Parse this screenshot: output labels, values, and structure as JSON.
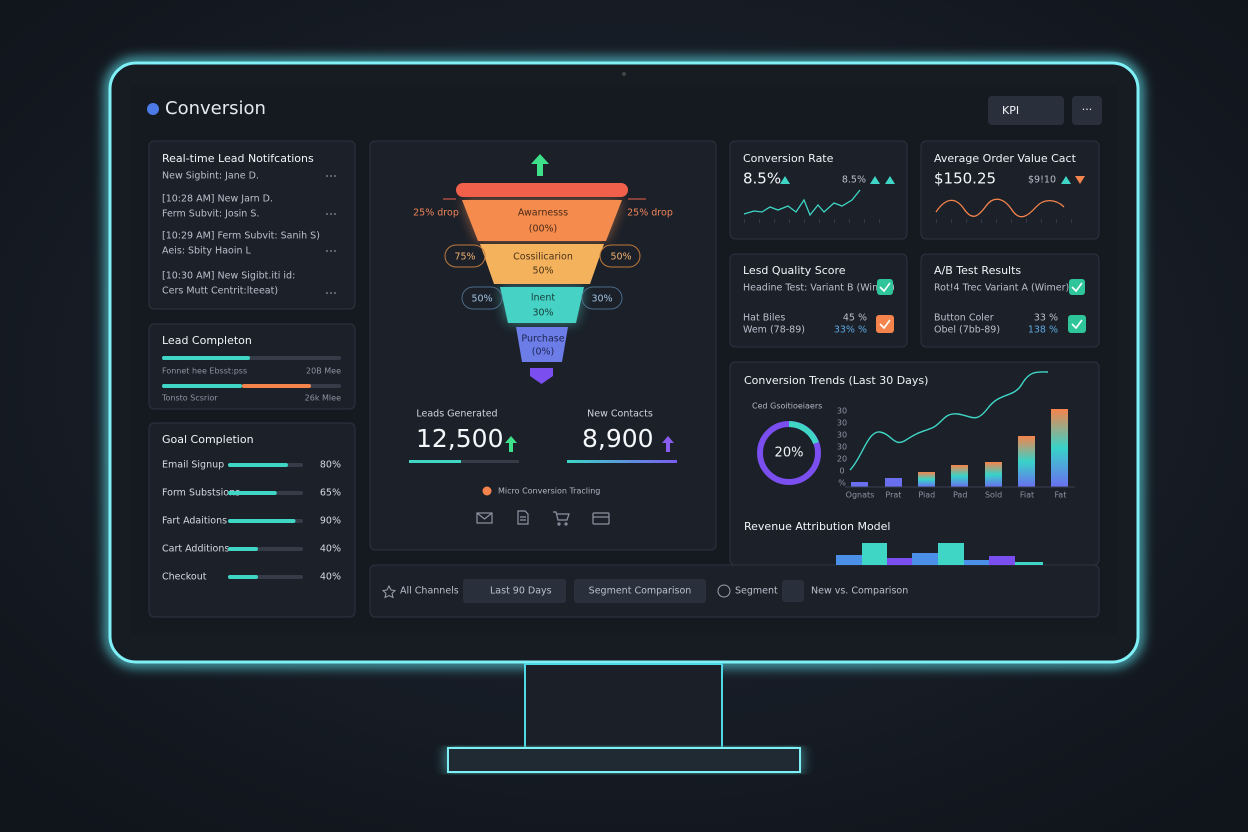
{
  "header": {
    "title": "Conversion",
    "kpi_button": "KPI",
    "more_button": "···"
  },
  "notifications": {
    "title": "Real-time Lead Notifcations",
    "items": [
      "New Sigbint: Jane D.",
      "[10:28 AM] New Jarn D.",
      "Ferm Subvit: Josin S.",
      "[10:29 AM] Ferm Subvit: Sanih S)",
      "Aeis: Sbity Haoin L",
      "[10:30 AM] New Sigibt.iti id:",
      "Cers Mutt Centrit:lteeat)"
    ]
  },
  "lead_completion": {
    "title": "Lead Completon",
    "rows": [
      {
        "label": "Fonnet hee Ebsst:pss",
        "value": "20B Mee"
      },
      {
        "label": "Tonsto Scsrior",
        "value": "26k Mlee"
      }
    ]
  },
  "goal_completion": {
    "title": "Goal Completion",
    "items": [
      {
        "label": "Email Signup",
        "value": "80%"
      },
      {
        "label": "Form Substsions",
        "value": "65%"
      },
      {
        "label": "Fart Adaitions",
        "value": "90%"
      },
      {
        "label": "Cart Additions",
        "value": "40%"
      },
      {
        "label": "Checkout",
        "value": "40%"
      }
    ]
  },
  "funnel": {
    "stages": [
      {
        "name": "Awarnesss",
        "value": "(00%)"
      },
      {
        "name": "Cossilicarion",
        "value": "50%"
      },
      {
        "name": "lnent",
        "value": "30%"
      },
      {
        "name": "Purchase",
        "value": "(0%)"
      }
    ],
    "side_labels": [
      "25% drop",
      "25% drop",
      "75%",
      "50%",
      "50%",
      "30%"
    ],
    "leads_label": "Leads Generated",
    "leads_value": "12,500",
    "contacts_label": "New Contacts",
    "contacts_value": "8,900",
    "micro": "Micro Conversion Tracling"
  },
  "conversion_rate": {
    "title": "Conversion Rate",
    "value": "8.5%",
    "compare": "8.5%"
  },
  "order_value": {
    "title": "Average Order Value Cact",
    "value": "$150.25",
    "compare": "$9!10"
  },
  "lead_quality": {
    "title": "Lesd Quality Score",
    "line1": "Headine Test: Variant B (Wimer)",
    "line2": "Hat Biles",
    "line3": "Wem (78-89)",
    "pct1": "45 %",
    "pct2": "33% %"
  },
  "ab_test": {
    "title": "A/B Test Results",
    "line1": "Rot!4 Trec Variant A (Wimer)",
    "line2": "Button Coler",
    "line3": "Obel (7bb-89)",
    "pct1": "33 %",
    "pct2": "138 %"
  },
  "trends": {
    "title": "Conversion Trends (Last 30 Days)",
    "donut_label": "Ced Gsoitioeiaers",
    "donut_value": "20%",
    "y_labels": [
      "30",
      "30",
      "30",
      "30",
      "20",
      "0",
      "%"
    ],
    "x_labels": [
      "Ognats",
      "Prat",
      "Piad",
      "Pad",
      "Sold",
      "Fiat",
      "Fat"
    ],
    "revenue_title": "Revenue Attribution Model"
  },
  "footer": {
    "all_channels": "All Channels",
    "range": "Last 90 Days",
    "segment_comparison": "Segment Comparison",
    "segment": "Segment",
    "new_vs": "New vs. Comparison"
  }
}
